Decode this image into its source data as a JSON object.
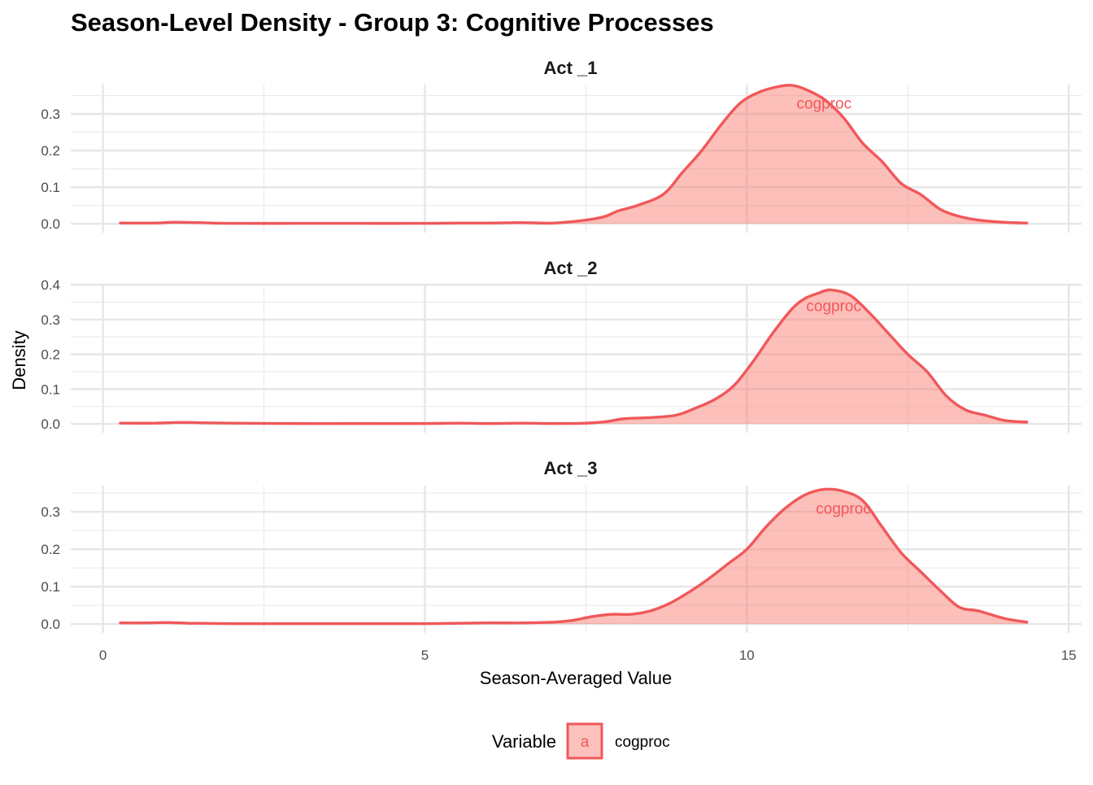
{
  "chart_data": {
    "type": "area",
    "title": "Season-Level Density -  Group 3: Cognitive Processes",
    "xlabel": "Season-Averaged Value",
    "ylabel": "Density",
    "xlim": [
      -0.5,
      15.2
    ],
    "x_ticks": [
      0,
      5,
      10,
      15
    ],
    "grid": true,
    "legend": {
      "position": "bottom",
      "title": "Variable",
      "key_glyph": "a",
      "entries": [
        "cogproc"
      ]
    },
    "colors": {
      "line": "#F0585A",
      "fill": "#F8766D"
    },
    "panels": [
      {
        "title": "Act _1",
        "ylim": [
          0,
          0.38
        ],
        "y_ticks": [
          0.0,
          0.1,
          0.2,
          0.3
        ],
        "annotation": {
          "label": "cogproc",
          "x": 11.2,
          "y": 0.33
        },
        "series": [
          {
            "name": "cogproc",
            "x": [
              0.27,
              0.8,
              1.1,
              1.5,
              2.0,
              3.0,
              4.0,
              5.0,
              5.5,
              6.0,
              6.5,
              7.0,
              7.5,
              7.8,
              8.0,
              8.3,
              8.7,
              9.0,
              9.3,
              9.6,
              9.9,
              10.2,
              10.5,
              10.7,
              10.9,
              11.2,
              11.5,
              11.8,
              12.1,
              12.4,
              12.7,
              13.0,
              13.3,
              13.6,
              14.0,
              14.35
            ],
            "y": [
              0.002,
              0.002,
              0.004,
              0.003,
              0.001,
              0.001,
              0.001,
              0.001,
              0.002,
              0.002,
              0.003,
              0.002,
              0.01,
              0.02,
              0.035,
              0.05,
              0.08,
              0.14,
              0.2,
              0.27,
              0.33,
              0.36,
              0.375,
              0.378,
              0.368,
              0.34,
              0.29,
              0.22,
              0.17,
              0.11,
              0.08,
              0.04,
              0.02,
              0.01,
              0.004,
              0.002
            ]
          }
        ]
      },
      {
        "title": "Act _2",
        "ylim": [
          0,
          0.4
        ],
        "y_ticks": [
          0.0,
          0.1,
          0.2,
          0.3,
          0.4
        ],
        "annotation": {
          "label": "cogproc",
          "x": 11.35,
          "y": 0.34
        },
        "series": [
          {
            "name": "cogproc",
            "x": [
              0.27,
              0.8,
              1.2,
              1.6,
              2.0,
              3.0,
              4.0,
              5.0,
              5.5,
              6.0,
              6.5,
              7.0,
              7.5,
              7.8,
              8.1,
              8.5,
              8.9,
              9.2,
              9.5,
              9.8,
              10.1,
              10.4,
              10.7,
              10.9,
              11.1,
              11.3,
              11.6,
              11.9,
              12.2,
              12.5,
              12.8,
              13.1,
              13.4,
              13.7,
              14.0,
              14.35
            ],
            "y": [
              0.002,
              0.002,
              0.004,
              0.003,
              0.002,
              0.001,
              0.001,
              0.001,
              0.002,
              0.001,
              0.002,
              0.001,
              0.002,
              0.006,
              0.015,
              0.018,
              0.025,
              0.045,
              0.07,
              0.11,
              0.18,
              0.26,
              0.33,
              0.36,
              0.375,
              0.385,
              0.37,
              0.32,
              0.26,
              0.2,
              0.15,
              0.08,
              0.04,
              0.025,
              0.01,
              0.005
            ]
          }
        ]
      },
      {
        "title": "Act _3",
        "ylim": [
          0,
          0.37
        ],
        "y_ticks": [
          0.0,
          0.1,
          0.2,
          0.3
        ],
        "annotation": {
          "label": "cogproc",
          "x": 11.5,
          "y": 0.31
        },
        "series": [
          {
            "name": "cogproc",
            "x": [
              0.27,
              0.7,
              1.0,
              1.4,
              2.0,
              3.0,
              4.0,
              5.0,
              5.5,
              6.0,
              6.5,
              7.0,
              7.3,
              7.6,
              7.9,
              8.2,
              8.5,
              8.8,
              9.1,
              9.4,
              9.7,
              10.0,
              10.3,
              10.6,
              10.9,
              11.2,
              11.5,
              11.8,
              12.1,
              12.4,
              12.7,
              13.0,
              13.3,
              13.6,
              14.0,
              14.35
            ],
            "y": [
              0.003,
              0.003,
              0.004,
              0.002,
              0.001,
              0.001,
              0.001,
              0.001,
              0.002,
              0.003,
              0.003,
              0.005,
              0.01,
              0.02,
              0.026,
              0.026,
              0.035,
              0.055,
              0.085,
              0.12,
              0.16,
              0.2,
              0.26,
              0.31,
              0.345,
              0.36,
              0.355,
              0.33,
              0.26,
              0.19,
              0.14,
              0.09,
              0.045,
              0.035,
              0.015,
              0.005
            ]
          }
        ]
      }
    ]
  }
}
